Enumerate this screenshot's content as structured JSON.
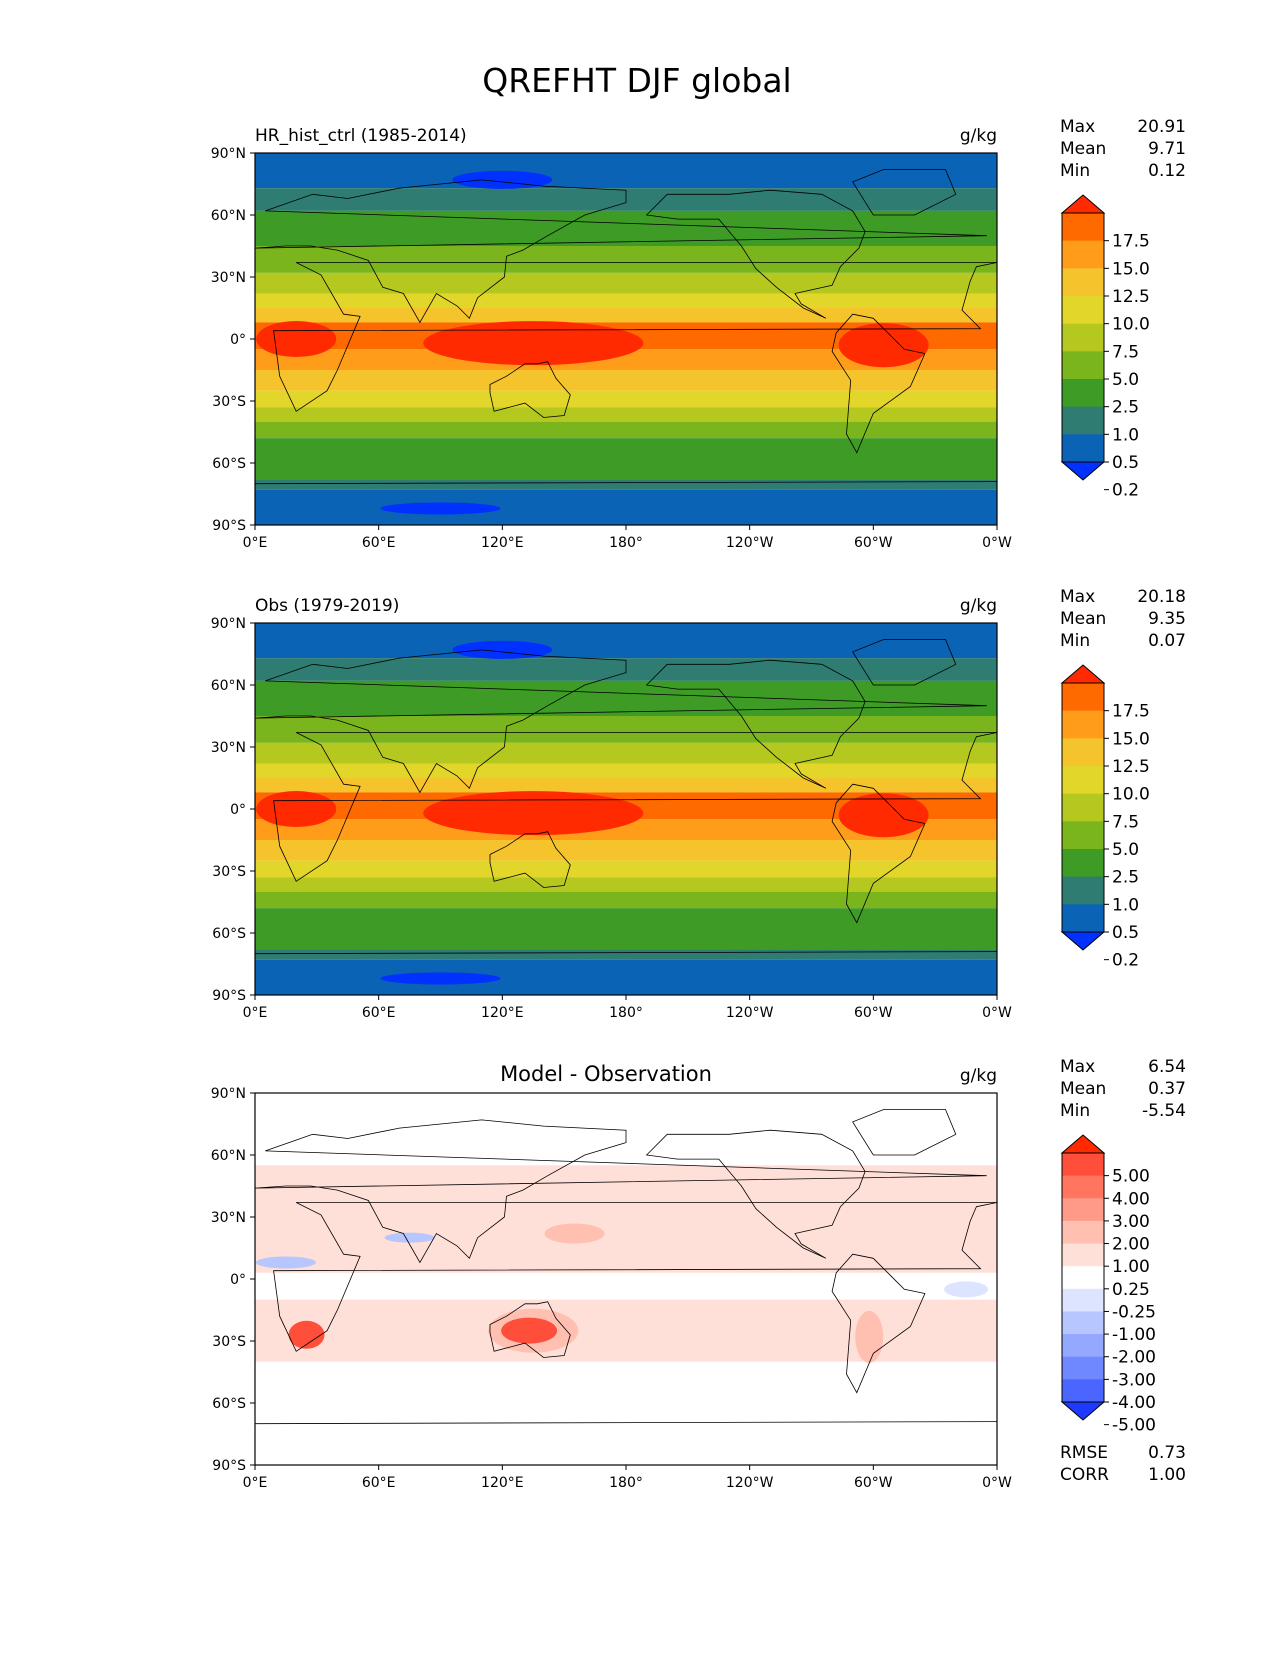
{
  "figure": {
    "title": "QREFHT DJF global"
  },
  "chart_data": [
    {
      "type": "heatmap",
      "title": "HR_hist_ctrl (1985-2014)",
      "units": "g/kg",
      "x_ticks": [
        "0°E",
        "60°E",
        "120°E",
        "180°",
        "120°W",
        "60°W",
        "0°W"
      ],
      "y_ticks": [
        "90°N",
        "60°N",
        "30°N",
        "0°",
        "30°S",
        "60°S",
        "90°S"
      ],
      "xlim": [
        0,
        360
      ],
      "ylim": [
        -90,
        90
      ],
      "stats": [
        {
          "label": "Max",
          "value": "20.91"
        },
        {
          "label": "Mean",
          "value": "9.71"
        },
        {
          "label": "Min",
          "value": "0.12"
        }
      ],
      "colorbar": {
        "levels": [
          "17.5",
          "15.0",
          "12.5",
          "10.0",
          "7.5",
          "5.0",
          "2.5",
          "1.0",
          "0.5",
          "0.2"
        ],
        "colors": [
          "#ff2a00",
          "#ff6a00",
          "#ff9d1a",
          "#f5c32c",
          "#e3d62b",
          "#b4c81f",
          "#7ab51d",
          "#3d9b26",
          "#2f7d72",
          "#0a63b5",
          "#0031ff"
        ]
      }
    },
    {
      "type": "heatmap",
      "title": "Obs (1979-2019)",
      "units": "g/kg",
      "x_ticks": [
        "0°E",
        "60°E",
        "120°E",
        "180°",
        "120°W",
        "60°W",
        "0°W"
      ],
      "y_ticks": [
        "90°N",
        "60°N",
        "30°N",
        "0°",
        "30°S",
        "60°S",
        "90°S"
      ],
      "xlim": [
        0,
        360
      ],
      "ylim": [
        -90,
        90
      ],
      "stats": [
        {
          "label": "Max",
          "value": "20.18"
        },
        {
          "label": "Mean",
          "value": "9.35"
        },
        {
          "label": "Min",
          "value": "0.07"
        }
      ],
      "colorbar": {
        "levels": [
          "17.5",
          "15.0",
          "12.5",
          "10.0",
          "7.5",
          "5.0",
          "2.5",
          "1.0",
          "0.5",
          "0.2"
        ],
        "colors": [
          "#ff2a00",
          "#ff6a00",
          "#ff9d1a",
          "#f5c32c",
          "#e3d62b",
          "#b4c81f",
          "#7ab51d",
          "#3d9b26",
          "#2f7d72",
          "#0a63b5",
          "#0031ff"
        ]
      }
    },
    {
      "type": "heatmap",
      "title": "Model - Observation",
      "units": "g/kg",
      "x_ticks": [
        "0°E",
        "60°E",
        "120°E",
        "180°",
        "120°W",
        "60°W",
        "0°W"
      ],
      "y_ticks": [
        "90°N",
        "60°N",
        "30°N",
        "0°",
        "30°S",
        "60°S",
        "90°S"
      ],
      "xlim": [
        0,
        360
      ],
      "ylim": [
        -90,
        90
      ],
      "stats": [
        {
          "label": "Max",
          "value": "6.54"
        },
        {
          "label": "Mean",
          "value": "0.37"
        },
        {
          "label": "Min",
          "value": "-5.54"
        }
      ],
      "extra_stats": [
        {
          "label": "RMSE",
          "value": "0.73"
        },
        {
          "label": "CORR",
          "value": "1.00"
        }
      ],
      "colorbar": {
        "levels": [
          "5.00",
          "4.00",
          "3.00",
          "2.00",
          "1.00",
          "0.25",
          "-0.25",
          "-1.00",
          "-2.00",
          "-3.00",
          "-4.00",
          "-5.00"
        ],
        "colors": [
          "#ff2a00",
          "#ff4f3a",
          "#ff7560",
          "#ff9a88",
          "#ffc0b2",
          "#ffe0d8",
          "#ffffff",
          "#dde4ff",
          "#b8c6ff",
          "#94a8ff",
          "#6f88ff",
          "#4a66ff",
          "#1f3aff"
        ]
      }
    }
  ]
}
